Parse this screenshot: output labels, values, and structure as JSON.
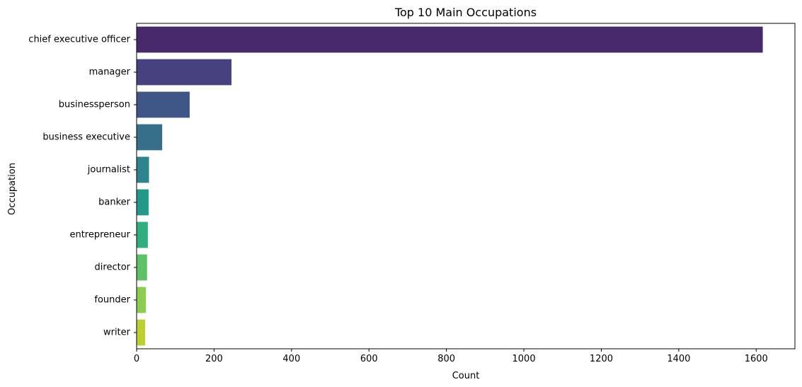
{
  "chart_data": {
    "type": "bar",
    "orientation": "horizontal",
    "title": "Top 10 Main Occupations",
    "xlabel": "Count",
    "ylabel": "Occupation",
    "xlim": [
      0,
      1700
    ],
    "xticks": [
      0,
      200,
      400,
      600,
      800,
      1000,
      1200,
      1400,
      1600
    ],
    "categories": [
      "chief executive officer",
      "manager",
      "businessperson",
      "business executive",
      "journalist",
      "banker",
      "entrepreneur",
      "director",
      "founder",
      "writer"
    ],
    "values": [
      1617,
      245,
      137,
      66,
      32,
      31,
      29,
      27,
      24,
      22
    ],
    "colors": [
      "#482a6c",
      "#46417f",
      "#3f5786",
      "#376f8a",
      "#2d848c",
      "#23998a",
      "#31ae7f",
      "#5ec167",
      "#8ccc53",
      "#bcd131"
    ],
    "grid": false,
    "legend": "none"
  }
}
